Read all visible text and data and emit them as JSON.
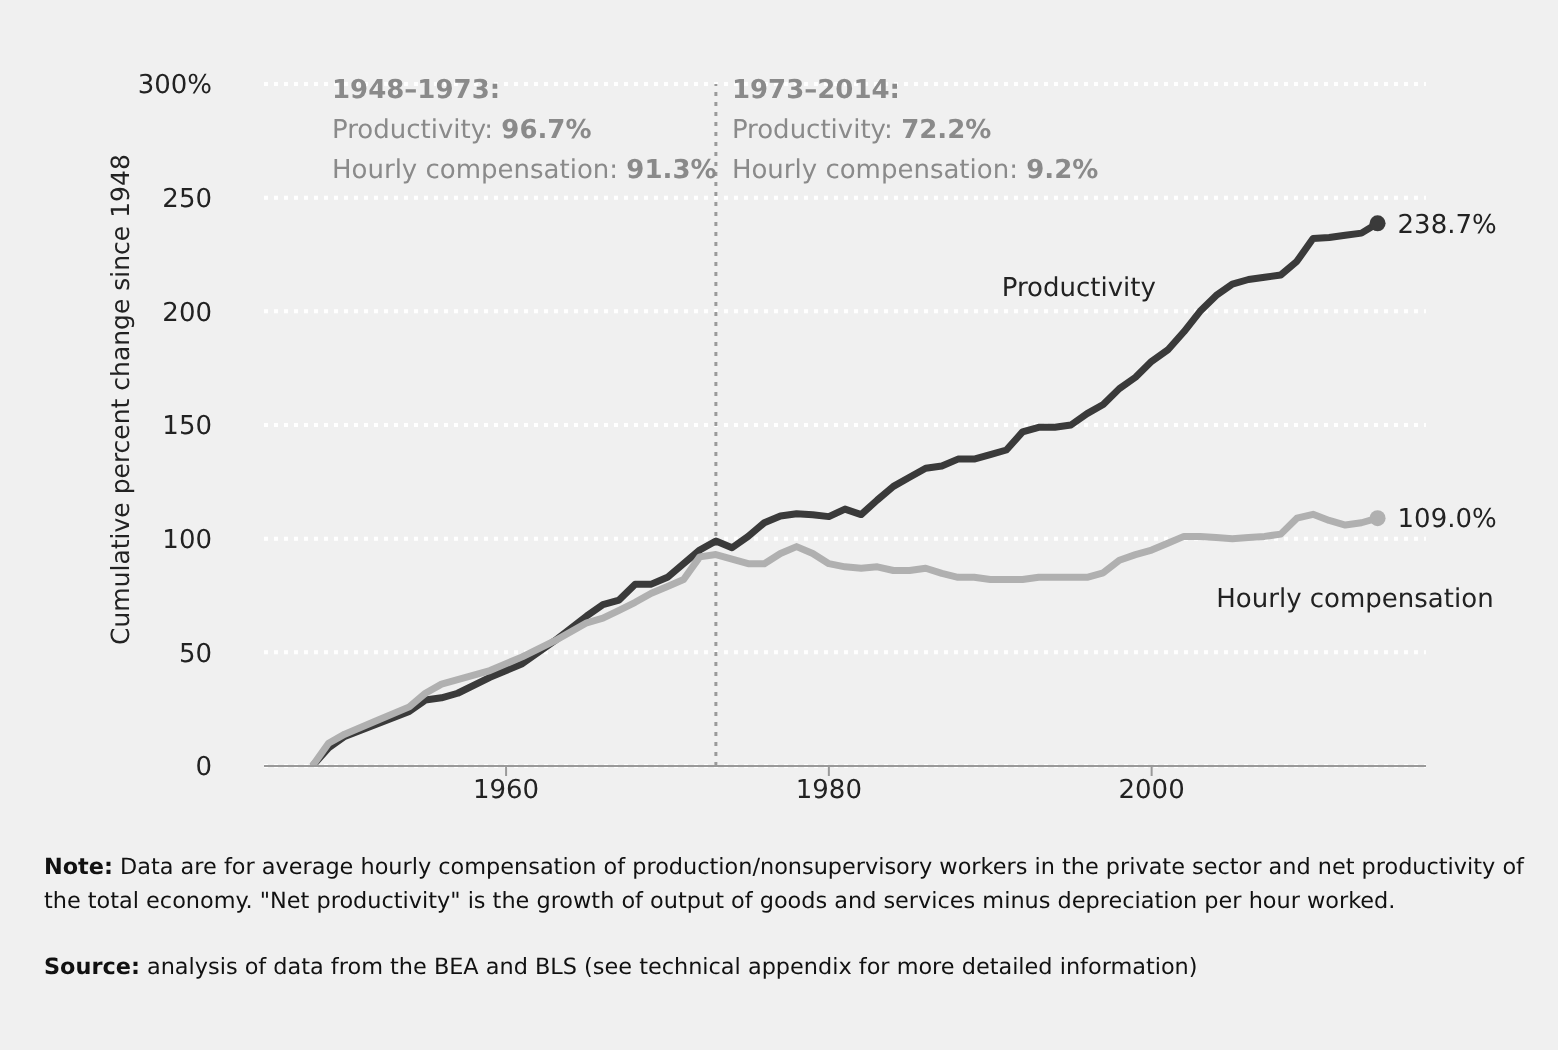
{
  "chart_data": {
    "type": "line",
    "ylabel": "Cumulative percent change since 1948",
    "xlim": [
      1945,
      2017
    ],
    "xticks": [
      1960,
      1980,
      2000
    ],
    "ylim": [
      0,
      300
    ],
    "yticks": [
      0,
      50,
      100,
      150,
      200,
      250,
      {
        "value": 300,
        "label": "300%"
      }
    ],
    "grid": "y",
    "legend": false,
    "marker": "none",
    "line_style": "solid",
    "ref_lines": [
      {
        "axis": "x",
        "value": 1973,
        "color": "#9a9a9a",
        "line_style": "dotted"
      }
    ],
    "x": [
      1948,
      1949,
      1950,
      1952,
      1954,
      1955,
      1956,
      1957,
      1959,
      1961,
      1963,
      1965,
      1966,
      1967,
      1968,
      1969,
      1970,
      1971,
      1972,
      1973,
      1974,
      1975,
      1976,
      1977,
      1978,
      1979,
      1980,
      1981,
      1982,
      1983,
      1984,
      1985,
      1986,
      1987,
      1988,
      1989,
      1990,
      1991,
      1992,
      1993,
      1994,
      1995,
      1996,
      1997,
      1998,
      1999,
      2000,
      2001,
      2002,
      2003,
      2004,
      2005,
      2006,
      2007,
      2008,
      2009,
      2010,
      2011,
      2012,
      2013,
      2014
    ],
    "series": [
      {
        "name": "Productivity",
        "color": "#3a3a3a",
        "values": [
          0,
          8,
          13,
          18.5,
          24,
          29,
          30,
          32,
          39,
          45,
          55,
          66,
          71,
          73,
          80,
          80,
          83,
          89,
          95,
          99,
          96,
          101,
          107,
          110,
          111,
          110.5,
          109.7,
          113,
          110.6,
          117,
          123,
          127,
          131,
          132,
          135,
          135,
          137,
          139,
          147,
          149,
          149,
          150,
          155,
          159,
          166,
          171,
          178,
          183,
          191,
          200,
          207,
          212,
          214,
          215,
          216,
          222,
          232,
          232.5,
          233.5,
          234.4,
          238.7
        ]
      },
      {
        "name": "Hourly compensation",
        "color": "#b0b0b0",
        "values": [
          0,
          10,
          14,
          20,
          26,
          32,
          36,
          38,
          42,
          48,
          55,
          63,
          65,
          68.5,
          72,
          76,
          79,
          82,
          92,
          93,
          91,
          89,
          89,
          93.5,
          96.5,
          93.5,
          89,
          87.6,
          87,
          87.6,
          86,
          86,
          87,
          84.7,
          83,
          83,
          82,
          82,
          82,
          83,
          83,
          83,
          83,
          85,
          90.5,
          93,
          95,
          98,
          101,
          101,
          100.5,
          100,
          100.5,
          101,
          102,
          109,
          110.7,
          108,
          106,
          107,
          109.0
        ]
      }
    ],
    "annotations": [
      "1948–1973:",
      "Productivity: 96.7%",
      "Hourly compensation: 91.3%",
      "1973–2014:",
      "Productivity: 72.2%",
      "Hourly compensation: 9.2%",
      {
        "text": "238.7%",
        "x": 2014,
        "y": 238.7
      },
      {
        "text": "109.0%",
        "x": 2014,
        "y": 109.0
      },
      "Note: Data are for average hourly compensation of production/nonsupervisory workers in the private sector and net productivity of the total economy. \"Net productivity\" is the growth of output of goods and services minus depreciation per hour worked.",
      "Source: analysis of data from the BEA and BLS (see technical appendix for more detailed information)"
    ]
  }
}
